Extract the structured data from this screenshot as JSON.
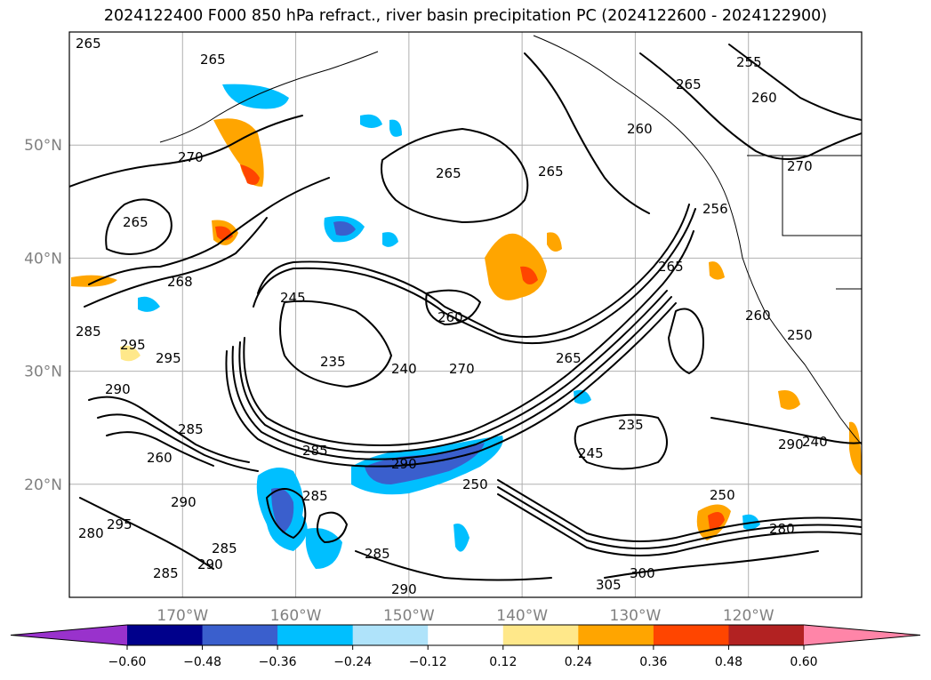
{
  "chart_data": {
    "type": "contour-map",
    "title": "2024122400 F000 850 hPa refract., river basin precipitation PC (2024122600 - 2024122900)",
    "lat_ticks": [
      "50°N",
      "40°N",
      "30°N",
      "20°N"
    ],
    "lat_values": [
      50,
      40,
      30,
      20
    ],
    "lon_ticks": [
      "170°W",
      "160°W",
      "150°W",
      "140°W",
      "130°W",
      "120°W"
    ],
    "lon_values": [
      -170,
      -160,
      -150,
      -140,
      -130,
      -120
    ],
    "lat_range": [
      10,
      60
    ],
    "lon_range": [
      -180,
      -110
    ],
    "grid": true,
    "contour_variable": "850 hPa refractivity",
    "contour_labels": [
      "265",
      "265",
      "270",
      "265",
      "260",
      "255",
      "265",
      "265",
      "260",
      "270",
      "265",
      "256",
      "265",
      "268",
      "260",
      "245",
      "285",
      "295",
      "295",
      "235",
      "240",
      "270",
      "260",
      "265",
      "250",
      "290",
      "285",
      "285",
      "260",
      "285",
      "290",
      "245",
      "235",
      "250",
      "290",
      "250",
      "280",
      "280",
      "290",
      "295",
      "285",
      "285",
      "290",
      "305",
      "300",
      "290",
      "285",
      "240"
    ],
    "colorbar": {
      "ticks": [
        "−0.60",
        "−0.48",
        "−0.36",
        "−0.24",
        "−0.12",
        "0.12",
        "0.24",
        "0.36",
        "0.48",
        "0.60"
      ],
      "levels": [
        -0.6,
        -0.48,
        -0.36,
        -0.24,
        -0.12,
        0.12,
        0.24,
        0.36,
        0.48,
        0.6
      ],
      "colors": [
        "#9932cc",
        "#00008b",
        "#3a5fcd",
        "#00bfff",
        "#afe3fa",
        "#ffffff",
        "#ffe88a",
        "#ffa500",
        "#ff4500",
        "#b22222",
        "#ff85a8"
      ],
      "extend": "both"
    }
  }
}
